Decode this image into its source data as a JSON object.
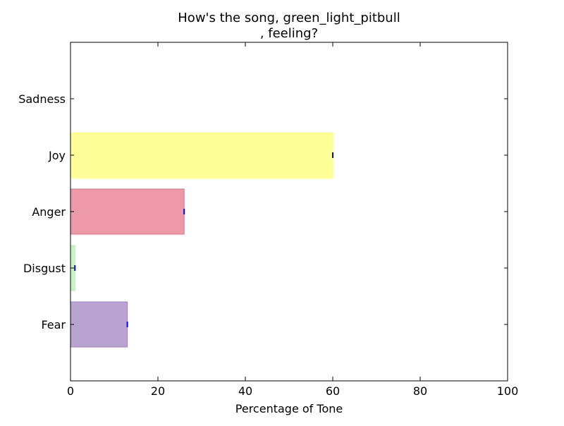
{
  "chart_data": {
    "type": "bar",
    "orientation": "horizontal",
    "title": "How's the song, green_light_pitbull\n, feeling?",
    "xlabel": "Percentage of Tone",
    "ylabel": "",
    "xlim": [
      0,
      100
    ],
    "x_ticks": [
      0,
      20,
      40,
      60,
      80,
      100
    ],
    "categories": [
      "Sadness",
      "Joy",
      "Anger",
      "Disgust",
      "Fear"
    ],
    "values": [
      0,
      60,
      26,
      1,
      13
    ],
    "colors": {
      "Sadness": "#9ecae1",
      "Joy": "#ffff99",
      "Anger": "#ec9aa9",
      "Disgust": "#c7f3c7",
      "Fear": "#b9a3d1"
    },
    "edge_colors": {
      "Sadness": "#6baed6",
      "Joy": "#ffff66",
      "Anger": "#e66f86",
      "Disgust": "#b8eeb8",
      "Fear": "#a183c8"
    },
    "marker_color": "#0000ff",
    "grid": false,
    "legend": "none"
  }
}
